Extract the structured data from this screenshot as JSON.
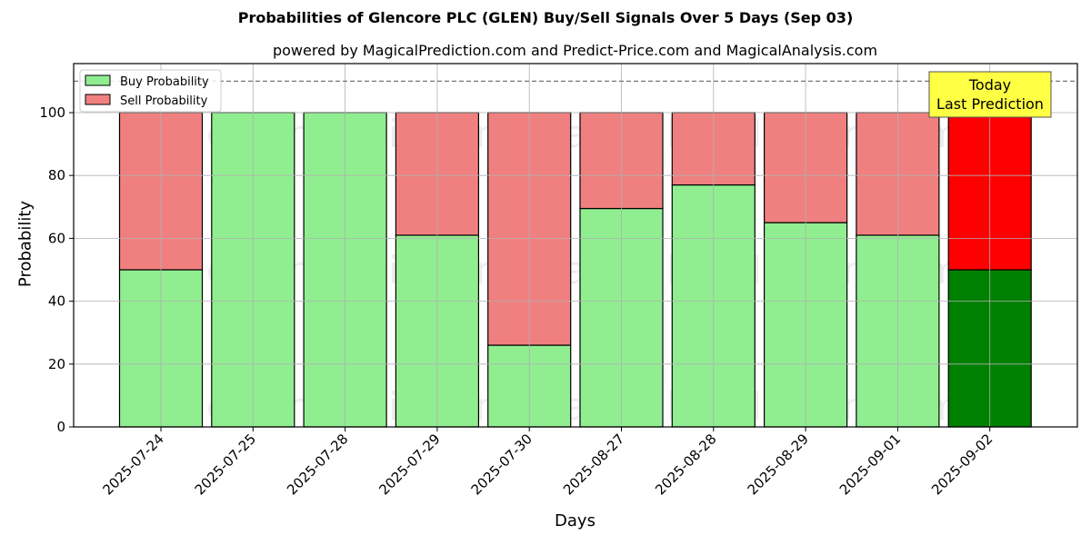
{
  "title": "Probabilities of Glencore PLC (GLEN) Buy/Sell Signals Over 5 Days (Sep 03)",
  "subtitle": "powered by MagicalPrediction.com and Predict-Price.com and MagicalAnalysis.com",
  "colors": {
    "buy": "#90ee90",
    "sell": "#f08080",
    "buy_today": "#008000",
    "sell_today": "#ff0000",
    "annotation_bg": "#ffff44"
  },
  "annotation": {
    "line1": "Today",
    "line2": "Last Prediction"
  },
  "watermarks": [
    "MagicalAnalysis.com",
    "MagicalPrediction.com"
  ],
  "chart_data": {
    "type": "bar",
    "stacked": true,
    "title": "Probabilities of Glencore PLC (GLEN) Buy/Sell Signals Over 5 Days (Sep 03)",
    "subtitle": "powered by MagicalPrediction.com and Predict-Price.com and MagicalAnalysis.com",
    "xlabel": "Days",
    "ylabel": "Probability",
    "ylim": [
      0,
      115
    ],
    "yticks": [
      0,
      20,
      40,
      60,
      80,
      100
    ],
    "grid": true,
    "legend_position": "upper left",
    "reference_line": {
      "y": 110,
      "style": "dashed"
    },
    "categories": [
      "2025-07-24",
      "2025-07-25",
      "2025-07-28",
      "2025-07-29",
      "2025-07-30",
      "2025-08-27",
      "2025-08-28",
      "2025-08-29",
      "2025-09-01",
      "2025-09-02"
    ],
    "series": [
      {
        "name": "Buy Probability",
        "values": [
          50,
          100,
          100,
          61,
          26,
          69.5,
          77,
          65,
          61,
          50
        ]
      },
      {
        "name": "Sell Probability",
        "values": [
          50,
          0,
          0,
          39,
          74,
          30.5,
          23,
          35,
          39,
          50
        ]
      }
    ]
  }
}
